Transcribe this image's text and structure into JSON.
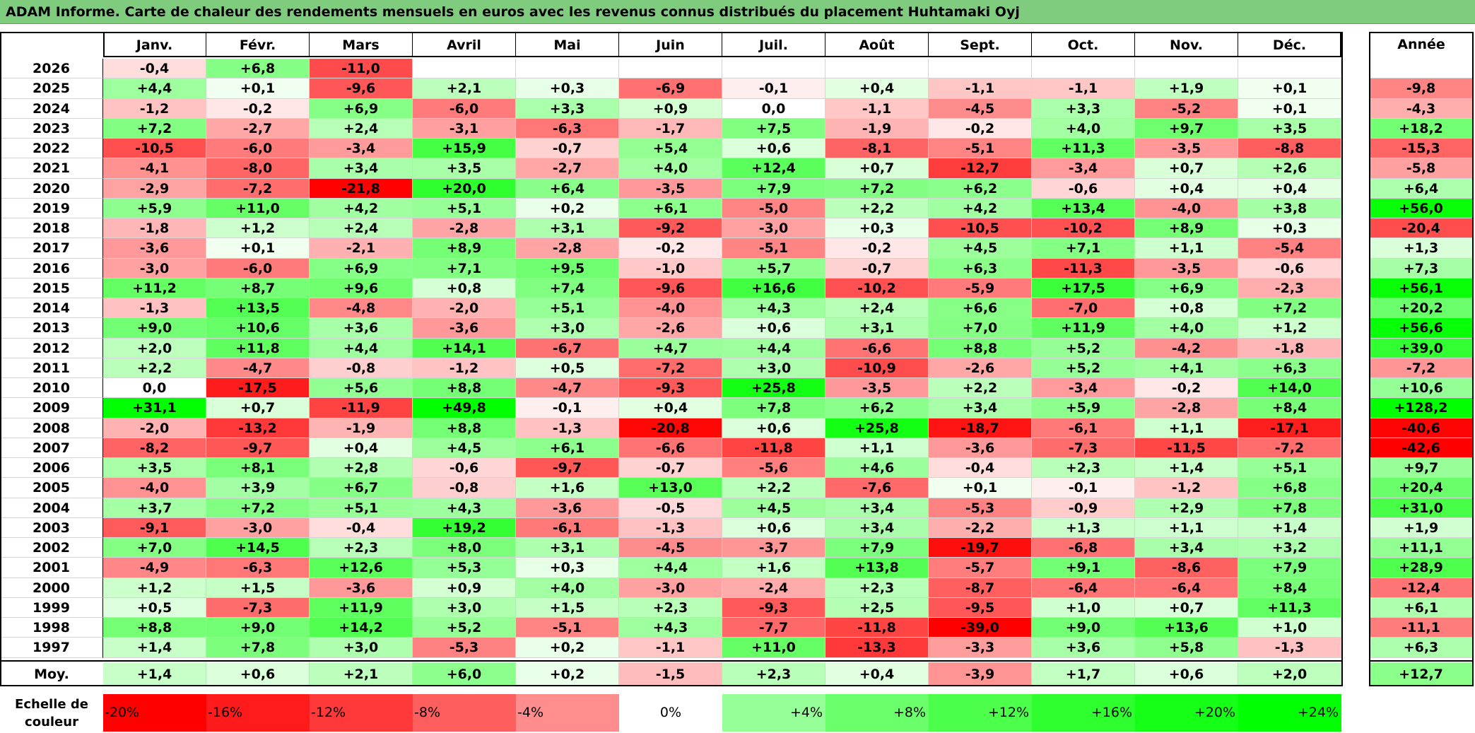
{
  "chart_data": {
    "type": "heatmap",
    "title": "ADAM Informe. Carte de chaleur des rendements mensuels en euros avec les revenus connus distribués du placement Huhtamaki Oyj",
    "months": [
      "Janv.",
      "Févr.",
      "Mars",
      "Avril",
      "Mai",
      "Juin",
      "Juil.",
      "Août",
      "Sept.",
      "Oct.",
      "Nov.",
      "Déc."
    ],
    "annual_label": "Année",
    "avg_label": "Moy.",
    "rows": [
      {
        "year": "2026",
        "values": [
          "-0,4",
          "+6,8",
          "-11,0",
          "",
          "",
          "",
          "",
          "",
          "",
          "",
          "",
          ""
        ],
        "annual": ""
      },
      {
        "year": "2025",
        "values": [
          "+4,4",
          "+0,1",
          "-9,6",
          "+2,1",
          "+0,3",
          "-6,9",
          "-0,1",
          "+0,4",
          "-1,1",
          "-1,1",
          "+1,9",
          "+0,1"
        ],
        "annual": "-9,8"
      },
      {
        "year": "2024",
        "values": [
          "-1,2",
          "-0,2",
          "+6,9",
          "-6,0",
          "+3,3",
          "+0,9",
          "0,0",
          "-1,1",
          "-4,5",
          "+3,3",
          "-5,2",
          "+0,1"
        ],
        "annual": "-4,3"
      },
      {
        "year": "2023",
        "values": [
          "+7,2",
          "-2,7",
          "+2,4",
          "-3,1",
          "-6,3",
          "-1,7",
          "+7,5",
          "-1,9",
          "-0,2",
          "+4,0",
          "+9,7",
          "+3,5"
        ],
        "annual": "+18,2"
      },
      {
        "year": "2022",
        "values": [
          "-10,5",
          "-6,0",
          "-3,4",
          "+15,9",
          "-0,7",
          "+5,4",
          "+0,6",
          "-8,1",
          "-5,1",
          "+11,3",
          "-3,5",
          "-8,8"
        ],
        "annual": "-15,3"
      },
      {
        "year": "2021",
        "values": [
          "-4,1",
          "-8,0",
          "+3,4",
          "+3,5",
          "-2,7",
          "+4,0",
          "+12,4",
          "+0,7",
          "-12,7",
          "-3,4",
          "+0,7",
          "+2,6"
        ],
        "annual": "-5,8"
      },
      {
        "year": "2020",
        "values": [
          "-2,9",
          "-7,2",
          "-21,8",
          "+20,0",
          "+6,4",
          "-3,5",
          "+7,9",
          "+7,2",
          "+6,2",
          "-0,6",
          "+0,4",
          "+0,4"
        ],
        "annual": "+6,4"
      },
      {
        "year": "2019",
        "values": [
          "+5,9",
          "+11,0",
          "+4,2",
          "+5,1",
          "+0,2",
          "+6,1",
          "-5,0",
          "+2,2",
          "+4,2",
          "+13,4",
          "-4,0",
          "+3,8"
        ],
        "annual": "+56,0"
      },
      {
        "year": "2018",
        "values": [
          "-1,8",
          "+1,2",
          "+2,4",
          "-2,8",
          "+3,1",
          "-9,2",
          "-3,0",
          "+0,3",
          "-10,5",
          "-10,2",
          "+8,9",
          "+0,3"
        ],
        "annual": "-20,4"
      },
      {
        "year": "2017",
        "values": [
          "-3,6",
          "+0,1",
          "-2,1",
          "+8,9",
          "-2,8",
          "-0,2",
          "-5,1",
          "-0,2",
          "+4,5",
          "+7,1",
          "+1,1",
          "-5,4"
        ],
        "annual": "+1,3"
      },
      {
        "year": "2016",
        "values": [
          "-3,0",
          "-6,0",
          "+6,9",
          "+7,1",
          "+9,5",
          "-1,0",
          "+5,7",
          "-0,7",
          "+6,3",
          "-11,3",
          "-3,5",
          "-0,6"
        ],
        "annual": "+7,3"
      },
      {
        "year": "2015",
        "values": [
          "+11,2",
          "+8,7",
          "+9,6",
          "+0,8",
          "+7,4",
          "-9,6",
          "+16,6",
          "-10,2",
          "-5,9",
          "+17,5",
          "+6,9",
          "-2,3"
        ],
        "annual": "+56,1"
      },
      {
        "year": "2014",
        "values": [
          "-1,3",
          "+13,5",
          "-4,8",
          "-2,0",
          "+5,1",
          "-4,0",
          "+4,3",
          "+2,4",
          "+6,6",
          "-7,0",
          "+0,8",
          "+7,2"
        ],
        "annual": "+20,2"
      },
      {
        "year": "2013",
        "values": [
          "+9,0",
          "+10,6",
          "+3,6",
          "-3,6",
          "+3,0",
          "-2,6",
          "+0,6",
          "+3,1",
          "+7,0",
          "+11,9",
          "+4,0",
          "+1,2"
        ],
        "annual": "+56,6"
      },
      {
        "year": "2012",
        "values": [
          "+2,0",
          "+11,8",
          "+4,4",
          "+14,1",
          "-6,7",
          "+4,7",
          "+4,4",
          "-6,6",
          "+8,8",
          "+5,2",
          "-4,2",
          "-1,8"
        ],
        "annual": "+39,0"
      },
      {
        "year": "2011",
        "values": [
          "+2,2",
          "-4,7",
          "-0,8",
          "-1,2",
          "+0,5",
          "-7,2",
          "+3,0",
          "-10,9",
          "-2,6",
          "+5,2",
          "+4,1",
          "+6,3"
        ],
        "annual": "-7,2"
      },
      {
        "year": "2010",
        "values": [
          "0,0",
          "-17,5",
          "+5,6",
          "+8,8",
          "-4,7",
          "-9,3",
          "+25,8",
          "-3,5",
          "+2,2",
          "-3,4",
          "-0,2",
          "+14,0"
        ],
        "annual": "+10,6"
      },
      {
        "year": "2009",
        "values": [
          "+31,1",
          "+0,7",
          "-11,9",
          "+49,8",
          "-0,1",
          "+0,4",
          "+7,8",
          "+6,2",
          "+3,4",
          "+5,9",
          "-2,8",
          "+8,4"
        ],
        "annual": "+128,2"
      },
      {
        "year": "2008",
        "values": [
          "-2,0",
          "-13,2",
          "-1,9",
          "+8,8",
          "-1,3",
          "-20,8",
          "+0,6",
          "+25,8",
          "-18,7",
          "-6,1",
          "+1,1",
          "-17,1"
        ],
        "annual": "-40,6"
      },
      {
        "year": "2007",
        "values": [
          "-8,2",
          "-9,7",
          "+0,4",
          "+4,5",
          "+6,1",
          "-6,6",
          "-11,8",
          "+1,1",
          "-3,6",
          "-7,3",
          "-11,5",
          "-7,2"
        ],
        "annual": "-42,6"
      },
      {
        "year": "2006",
        "values": [
          "+3,5",
          "+8,1",
          "+2,8",
          "-0,6",
          "-9,7",
          "-0,7",
          "-5,6",
          "+4,6",
          "-0,4",
          "+2,3",
          "+1,4",
          "+5,1"
        ],
        "annual": "+9,7"
      },
      {
        "year": "2005",
        "values": [
          "-4,0",
          "+3,9",
          "+6,7",
          "-0,8",
          "+1,6",
          "+13,0",
          "+2,2",
          "-7,6",
          "+0,1",
          "-0,1",
          "-1,2",
          "+6,8"
        ],
        "annual": "+20,4"
      },
      {
        "year": "2004",
        "values": [
          "+3,7",
          "+7,2",
          "+5,1",
          "+4,3",
          "-3,6",
          "-0,5",
          "+4,5",
          "+3,4",
          "-5,3",
          "-0,9",
          "+2,9",
          "+7,8"
        ],
        "annual": "+31,0"
      },
      {
        "year": "2003",
        "values": [
          "-9,1",
          "-3,0",
          "-0,4",
          "+19,2",
          "-6,1",
          "-1,3",
          "+0,6",
          "+3,4",
          "-2,2",
          "+1,3",
          "+1,1",
          "+1,4"
        ],
        "annual": "+1,9"
      },
      {
        "year": "2002",
        "values": [
          "+7,0",
          "+14,5",
          "+2,3",
          "+8,0",
          "+3,1",
          "-4,5",
          "-3,7",
          "+7,9",
          "-19,7",
          "-6,8",
          "+3,4",
          "+3,2"
        ],
        "annual": "+11,1"
      },
      {
        "year": "2001",
        "values": [
          "-4,9",
          "-6,3",
          "+12,6",
          "+5,3",
          "+0,3",
          "+4,4",
          "+1,6",
          "+13,8",
          "-5,7",
          "+9,1",
          "-8,6",
          "+7,9"
        ],
        "annual": "+28,9"
      },
      {
        "year": "2000",
        "values": [
          "+1,2",
          "+1,5",
          "-3,6",
          "+0,9",
          "+4,0",
          "-3,0",
          "-2,4",
          "+2,3",
          "-8,7",
          "-6,4",
          "-6,4",
          "+8,4"
        ],
        "annual": "-12,4"
      },
      {
        "year": "1999",
        "values": [
          "+0,5",
          "-7,3",
          "+11,9",
          "+3,0",
          "+1,5",
          "+2,3",
          "-9,3",
          "+2,5",
          "-9,5",
          "+1,0",
          "+0,7",
          "+11,3"
        ],
        "annual": "+6,1"
      },
      {
        "year": "1998",
        "values": [
          "+8,8",
          "+9,0",
          "+14,2",
          "+5,2",
          "-5,1",
          "+4,3",
          "-7,7",
          "-11,8",
          "-39,0",
          "+9,0",
          "+13,6",
          "+1,0"
        ],
        "annual": "-11,1"
      },
      {
        "year": "1997",
        "values": [
          "+1,4",
          "+7,8",
          "+3,0",
          "-5,3",
          "+0,2",
          "-1,1",
          "+11,0",
          "-13,3",
          "-3,3",
          "+3,6",
          "+5,8",
          "-1,3"
        ],
        "annual": "+6,3"
      }
    ],
    "averages": {
      "values": [
        "+1,4",
        "+0,6",
        "+2,1",
        "+6,0",
        "+0,2",
        "-1,5",
        "+2,3",
        "+0,4",
        "-3,9",
        "+1,7",
        "+0,6",
        "+2,0"
      ],
      "annual": "+12,7"
    },
    "color_scale": {
      "label": "Echelle de couleur",
      "steps": [
        "-20%",
        "-16%",
        "-12%",
        "-8%",
        "-4%",
        "0%",
        "+4%",
        "+8%",
        "+12%",
        "+16%",
        "+20%",
        "+24%"
      ],
      "negative_color": "#ff0000",
      "zero_color": "#ffffff",
      "positive_color": "#00ff00"
    }
  }
}
